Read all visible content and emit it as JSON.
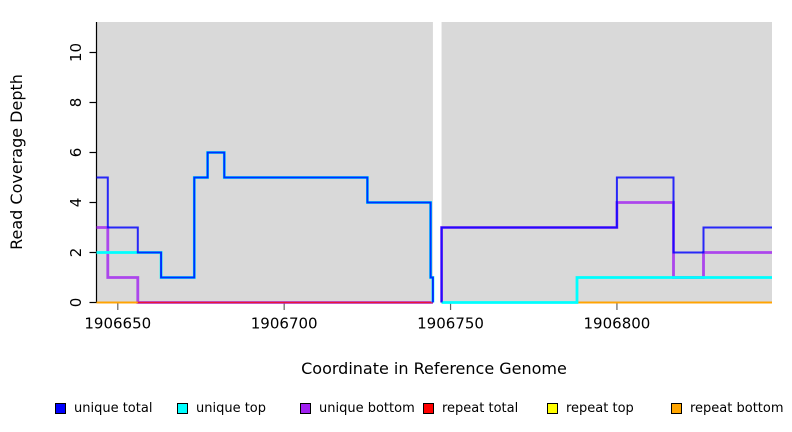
{
  "chart_data": {
    "type": "line",
    "subtype": "step-coverage",
    "title": "",
    "xlabel": "Coordinate in Reference Genome",
    "ylabel": "Read Coverage Depth",
    "xlim": [
      1906643.6,
      1906846.6
    ],
    "ylim": [
      0,
      11.22
    ],
    "x_ticks": [
      1906650,
      1906700,
      1906750,
      1906800
    ],
    "y_ticks": [
      0,
      2,
      4,
      6,
      8,
      10
    ],
    "grid": false,
    "plot_bg": "#d9d9d9",
    "gap_region": {
      "from": 1906744.7,
      "to": 1906747.3,
      "color": "#ffffff"
    },
    "legend_position": "bottom",
    "series": [
      {
        "name": "repeat top",
        "color": "#FFFF00",
        "segments": [
          {
            "points": [
              [
                1906643.6,
                0
              ]
            ],
            "end": 1906744.7
          },
          {
            "points": [
              [
                1906747.3,
                0
              ]
            ],
            "end": 1906846.6
          }
        ]
      },
      {
        "name": "unique bottom",
        "color": "#A020F0",
        "segments": [
          {
            "points": [
              [
                1906643.6,
                3
              ],
              [
                1906647,
                1
              ],
              [
                1906656,
                0
              ]
            ],
            "end": 1906744.7
          },
          {
            "points": [
              [
                1906747.3,
                0
              ],
              [
                1906747.3,
                3
              ],
              [
                1906800,
                4
              ],
              [
                1906817,
                1
              ],
              [
                1906826,
                2
              ]
            ],
            "end": 1906846.6
          }
        ]
      },
      {
        "name": "repeat total",
        "color": "#FF0000",
        "segments": [
          {
            "points": [
              [
                1906643.6,
                0
              ]
            ],
            "end": 1906744.7
          },
          {
            "points": [
              [
                1906747.3,
                0
              ]
            ],
            "end": 1906846.6
          }
        ]
      },
      {
        "name": "repeat bottom",
        "color": "#FFA500",
        "segments": [
          {
            "points": [
              [
                1906643.6,
                0
              ]
            ],
            "end": 1906656
          },
          {
            "points": [
              [
                1906747.3,
                0
              ]
            ],
            "end": 1906846.6
          }
        ]
      },
      {
        "name": "unique top",
        "color": "#00FFFF",
        "segments": [
          {
            "points": [
              [
                1906643.6,
                2
              ],
              [
                1906663,
                1
              ],
              [
                1906673,
                5
              ],
              [
                1906677,
                6
              ],
              [
                1906682,
                5
              ],
              [
                1906725,
                4
              ],
              [
                1906744,
                1
              ]
            ],
            "end": 1906744.7,
            "end_y": 0
          },
          {
            "points": [
              [
                1906747.3,
                0
              ],
              [
                1906788,
                1
              ]
            ],
            "end": 1906846.6
          }
        ]
      },
      {
        "name": "unique total",
        "color": "#0000FF",
        "segments": [
          {
            "points": [
              [
                1906643.6,
                5
              ],
              [
                1906647,
                3
              ],
              [
                1906656,
                2
              ],
              [
                1906663,
                1
              ],
              [
                1906673,
                5
              ],
              [
                1906677,
                6
              ],
              [
                1906682,
                5
              ],
              [
                1906725,
                4
              ],
              [
                1906744,
                1
              ]
            ],
            "end": 1906744.7,
            "end_y": 0
          },
          {
            "points": [
              [
                1906747.3,
                0
              ],
              [
                1906747.3,
                3
              ],
              [
                1906800,
                5
              ],
              [
                1906817,
                2
              ],
              [
                1906826,
                3
              ]
            ],
            "end": 1906846.6
          }
        ]
      }
    ]
  },
  "legend": {
    "items": [
      {
        "label": "unique total",
        "color": "#0000FF"
      },
      {
        "label": "unique top",
        "color": "#00FFFF"
      },
      {
        "label": "unique bottom",
        "color": "#A020F0"
      },
      {
        "label": "repeat total",
        "color": "#FF0000"
      },
      {
        "label": "repeat top",
        "color": "#FFFF00"
      },
      {
        "label": "repeat bottom",
        "color": "#FFA500"
      }
    ]
  }
}
